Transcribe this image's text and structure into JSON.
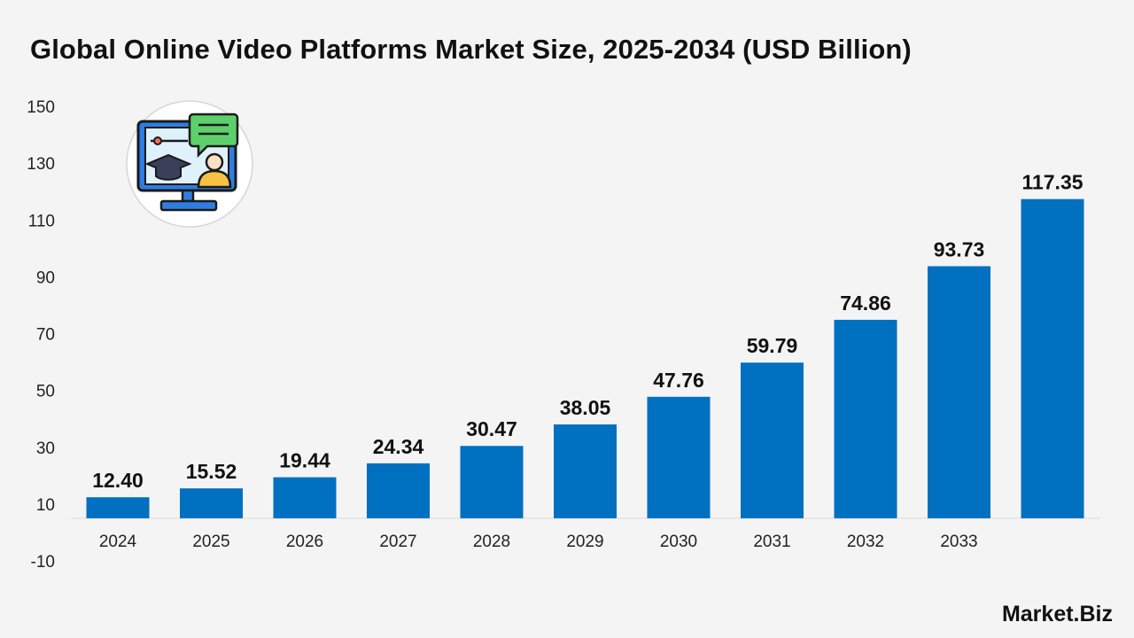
{
  "title": "Global Online Video Platforms Market Size, 2025-2034 (USD Billion)",
  "brand": "Market.Biz",
  "colors": {
    "bar": "#0070c0",
    "background": "#f4f4f4"
  },
  "illustration_icon": "online-education-monitor-icon",
  "chart_data": {
    "type": "bar",
    "title": "Global Online Video Platforms Market Size, 2025-2034 (USD Billion)",
    "categories": [
      "2024",
      "2025",
      "2026",
      "2027",
      "2028",
      "2029",
      "2030",
      "2031",
      "2032",
      "2033",
      ""
    ],
    "values": [
      12.4,
      15.52,
      19.44,
      24.34,
      30.47,
      38.05,
      47.76,
      59.79,
      74.86,
      93.73,
      117.35
    ],
    "value_labels": [
      "12.40",
      "15.52",
      "19.44",
      "24.34",
      "30.47",
      "38.05",
      "47.76",
      "59.79",
      "74.86",
      "93.73",
      "117.35"
    ],
    "y_ticks": [
      -10,
      10,
      30,
      50,
      70,
      90,
      110,
      130,
      150
    ],
    "ylim": [
      -10,
      150
    ],
    "baseline": 5,
    "grid": false,
    "legend": "none"
  }
}
